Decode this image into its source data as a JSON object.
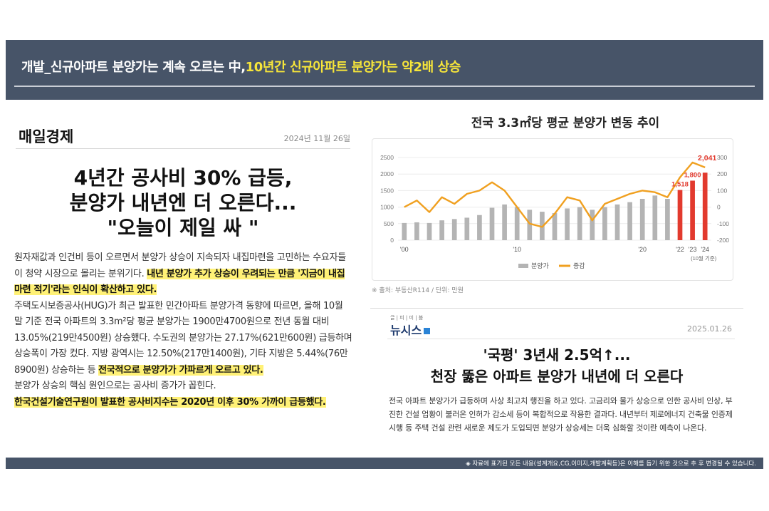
{
  "banner": {
    "title_main": "개발_신규아파트 분양가는 계속 오르는 中,",
    "title_highlight": "10년간 신규아파트 분양가는 약2배 상승"
  },
  "left_article": {
    "paper": "매일경제",
    "date": "2024년 11월 26일",
    "headline_line1": "4년간 공사비 30% 급등,",
    "headline_line2": "분양가 내년엔 더 오른다...",
    "headline_line3": "\"오늘이 제일 싸 \"",
    "body": [
      {
        "t": "원자재값과 인건비 등이 오르면서 분양가 상승이 지속되자 내집마련을 고민하는 수요자들이 청약 시장으로 몰리는 분위기다. ",
        "h": false
      },
      {
        "t": "내년 분양가 추가 상승이 우려되는 만큼 '지금이 내집마련 적기'라는 인식이 확산하고 있다.",
        "h": true
      },
      {
        "t": "주택도시보증공사(HUG)가 최근 발표한 민간아파트 분양가격 동향에 따르면, 올해 10월 말 기준 전국 아파트의 3.3m²당 평균 분양가는 1900만4700원으로 전년 동월 대비 13.05%(219만4500원) 상승했다. 수도권의 분양가는 27.17%(621만600원) 급등하며 상승폭이 가장 컸다. 지방 광역시는 12.50%(217만1400원), 기타 지방은 5.44%(76만8900원) 상승하는 등 ",
        "h": false
      },
      {
        "t": "전국적으로 분양가가 가파르게 오르고 있다.",
        "h": true
      },
      {
        "t": "분양가 상승의 핵심 원인으로는 공사비 증가가 꼽힌다.",
        "h": false
      },
      {
        "t": "한국건설기술연구원이 발표한 공사비지수는 2020년 이후 30% 가까이 급등했다.",
        "h": true
      }
    ]
  },
  "chart_section": {
    "title": "전국 3.3㎡당 평균 분양가 변동 추이",
    "source": "※ 출처: 부동산R114 / 단위: 만원"
  },
  "chart_data": {
    "type": "bar",
    "x_tick_labels": [
      "'00",
      "'10",
      "'20",
      "'22",
      "'23",
      "'24"
    ],
    "x_note": "(10월 기준)",
    "left_axis": {
      "ylim": [
        0,
        2500
      ],
      "ticks": [
        0,
        500,
        1000,
        1500,
        2000,
        2500
      ]
    },
    "right_axis": {
      "ylim": [
        -200,
        300
      ],
      "ticks": [
        -200,
        -100,
        0,
        100,
        200,
        300
      ]
    },
    "legend_position": "bottom-center",
    "colors": {
      "bar": "#b4b4b4",
      "bar_highlight": "#e23a2e",
      "line": "#f0a020"
    },
    "series": [
      {
        "name": "분양가",
        "kind": "bar",
        "values": [
          520,
          540,
          520,
          600,
          640,
          680,
          760,
          980,
          1080,
          1000,
          920,
          860,
          820,
          960,
          1000,
          920,
          1000,
          1080,
          1150,
          1250,
          1350,
          1250,
          1518,
          1800,
          2041
        ],
        "highlight_from": 22
      },
      {
        "name": "증감",
        "kind": "line",
        "values": [
          0,
          40,
          -30,
          60,
          20,
          80,
          100,
          150,
          100,
          0,
          -100,
          -120,
          -40,
          60,
          40,
          -80,
          20,
          50,
          80,
          100,
          90,
          60,
          180,
          270,
          240
        ]
      }
    ],
    "data_labels": [
      "1,518",
      "1,800",
      "2,041"
    ]
  },
  "right_article": {
    "logo_small": "글 | 피 | 미 | 붐",
    "logo": "뉴시스",
    "date": "2025.01.26",
    "headline_line1": "'국평' 3년새 2.5억↑...",
    "headline_line2": "천장 뚫은 아파트 분양가 내년에 더 오른다",
    "body": "전국 아파트 분양가가 급등하며 사상 최고치 행진을 하고 있다. 고금리와 물가 상승으로 인한 공사비 인상, 부진한 건설 업황이 불러온 인허가 감소세 등이 복합적으로 작용한 결과다. 내년부터 제로에너지 건축물 인증제 시행 등 주택 건설 관련 새로운 제도가 도입되면 분양가 상승세는 더욱 심화할 것이란 예측이 나온다."
  },
  "footer": {
    "note": "◈ 자료에 표기된 모든 내용(설계개요,CG,이미지,개발계획등)은 이해를 돕기 위한 것으로 추 후 변경될 수 있습니다."
  }
}
